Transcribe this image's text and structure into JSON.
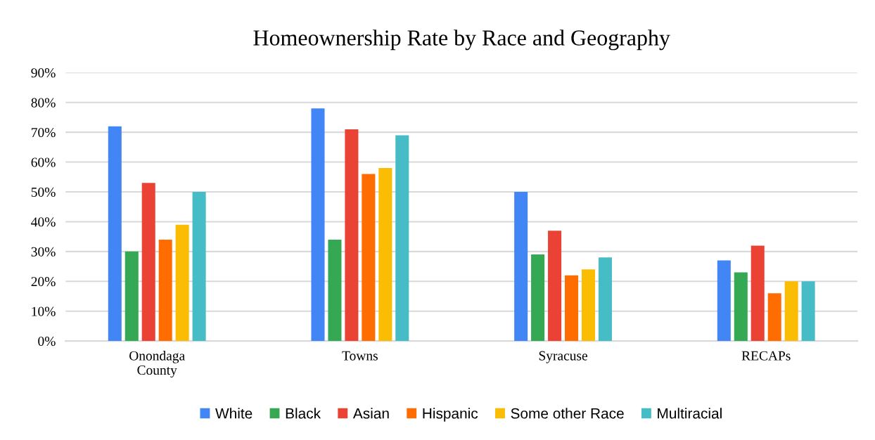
{
  "chart_data": {
    "type": "bar",
    "title": "Homeownership Rate by Race and Geography",
    "categories": [
      "Onondaga\nCounty",
      "Towns",
      "Syracuse",
      "RECAPs"
    ],
    "series": [
      {
        "name": "White",
        "color": "#4285f4",
        "values": [
          72,
          78,
          50,
          27
        ]
      },
      {
        "name": "Black",
        "color": "#34a853",
        "values": [
          30,
          34,
          29,
          23
        ]
      },
      {
        "name": "Asian",
        "color": "#ea4335",
        "values": [
          53,
          71,
          37,
          32
        ]
      },
      {
        "name": "Hispanic",
        "color": "#ff6d00",
        "values": [
          34,
          56,
          22,
          16
        ]
      },
      {
        "name": "Some other Race",
        "color": "#fbbc04",
        "values": [
          39,
          58,
          24,
          20
        ]
      },
      {
        "name": "Multiracial",
        "color": "#46bdc6",
        "values": [
          50,
          69,
          28,
          20
        ]
      }
    ],
    "ylim": [
      0,
      90
    ],
    "yticks": [
      {
        "value": 0,
        "label": "0%"
      },
      {
        "value": 10,
        "label": "10%"
      },
      {
        "value": 20,
        "label": "20%"
      },
      {
        "value": 30,
        "label": "30%"
      },
      {
        "value": 40,
        "label": "40%"
      },
      {
        "value": 50,
        "label": "50%"
      },
      {
        "value": 60,
        "label": "60%"
      },
      {
        "value": 70,
        "label": "70%"
      },
      {
        "value": 80,
        "label": "80%"
      },
      {
        "value": 90,
        "label": "90%"
      }
    ],
    "grid": "y",
    "legend": "bottom"
  }
}
